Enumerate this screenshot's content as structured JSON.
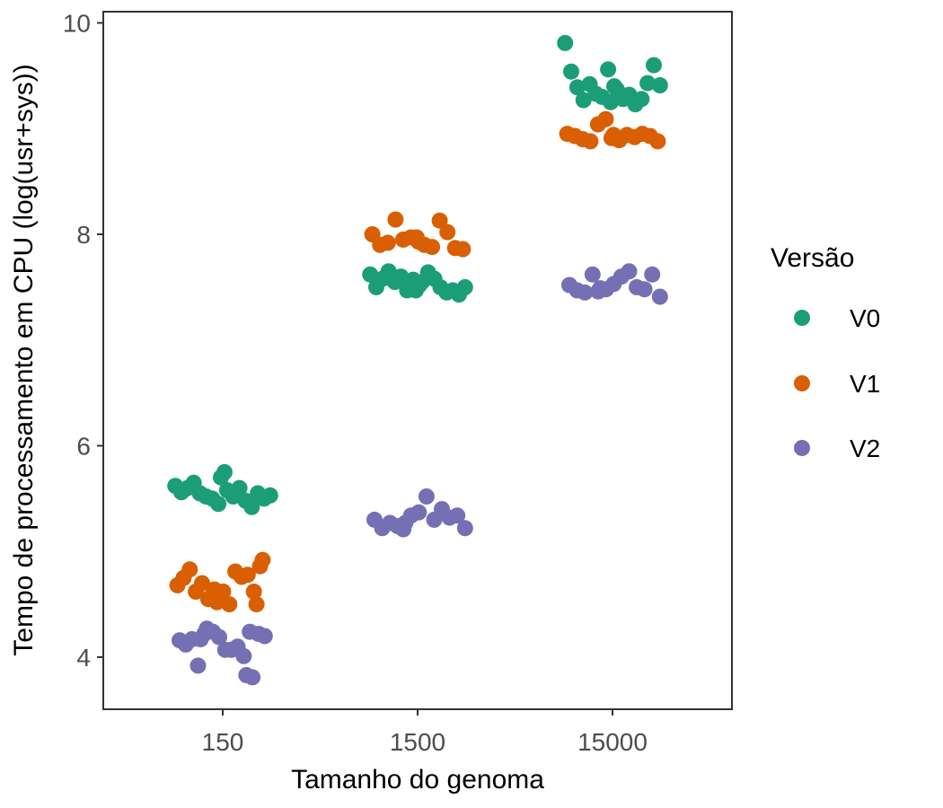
{
  "chart_data": {
    "type": "scatter",
    "xlabel": "Tamanho do genoma",
    "ylabel": "Tempo de processamento em CPU (log(usr+sys))",
    "categories": [
      "150",
      "1500",
      "15000"
    ],
    "ylim": [
      3.5,
      10.1
    ],
    "yticks": [
      4,
      6,
      8,
      10
    ],
    "grid": false,
    "legend": {
      "title": "Versão",
      "position": "right"
    },
    "series": [
      {
        "name": "V0",
        "color": "#1b9e77",
        "points": [
          {
            "x": "150",
            "y": 5.62
          },
          {
            "x": "150",
            "y": 5.56
          },
          {
            "x": "150",
            "y": 5.6
          },
          {
            "x": "150",
            "y": 5.65
          },
          {
            "x": "150",
            "y": 5.55
          },
          {
            "x": "150",
            "y": 5.52
          },
          {
            "x": "150",
            "y": 5.5
          },
          {
            "x": "150",
            "y": 5.45
          },
          {
            "x": "150",
            "y": 5.75
          },
          {
            "x": "150",
            "y": 5.7
          },
          {
            "x": "150",
            "y": 5.58
          },
          {
            "x": "150",
            "y": 5.52
          },
          {
            "x": "150",
            "y": 5.6
          },
          {
            "x": "150",
            "y": 5.48
          },
          {
            "x": "150",
            "y": 5.42
          },
          {
            "x": "150",
            "y": 5.55
          },
          {
            "x": "150",
            "y": 5.5
          },
          {
            "x": "150",
            "y": 5.53
          },
          {
            "x": "1500",
            "y": 7.62
          },
          {
            "x": "1500",
            "y": 7.5
          },
          {
            "x": "1500",
            "y": 7.58
          },
          {
            "x": "1500",
            "y": 7.65
          },
          {
            "x": "1500",
            "y": 7.55
          },
          {
            "x": "1500",
            "y": 7.6
          },
          {
            "x": "1500",
            "y": 7.47
          },
          {
            "x": "1500",
            "y": 7.57
          },
          {
            "x": "1500",
            "y": 7.52
          },
          {
            "x": "1500",
            "y": 7.47
          },
          {
            "x": "1500",
            "y": 7.55
          },
          {
            "x": "1500",
            "y": 7.64
          },
          {
            "x": "1500",
            "y": 7.58
          },
          {
            "x": "1500",
            "y": 7.5
          },
          {
            "x": "1500",
            "y": 7.45
          },
          {
            "x": "1500",
            "y": 7.47
          },
          {
            "x": "1500",
            "y": 7.43
          },
          {
            "x": "1500",
            "y": 7.5
          },
          {
            "x": "15000",
            "y": 9.81
          },
          {
            "x": "15000",
            "y": 9.54
          },
          {
            "x": "15000",
            "y": 9.39
          },
          {
            "x": "15000",
            "y": 9.27
          },
          {
            "x": "15000",
            "y": 9.42
          },
          {
            "x": "15000",
            "y": 9.33
          },
          {
            "x": "15000",
            "y": 9.3
          },
          {
            "x": "15000",
            "y": 9.56
          },
          {
            "x": "15000",
            "y": 9.4
          },
          {
            "x": "15000",
            "y": 9.25
          },
          {
            "x": "15000",
            "y": 9.37
          },
          {
            "x": "15000",
            "y": 9.28
          },
          {
            "x": "15000",
            "y": 9.32
          },
          {
            "x": "15000",
            "y": 9.23
          },
          {
            "x": "15000",
            "y": 9.28
          },
          {
            "x": "15000",
            "y": 9.43
          },
          {
            "x": "15000",
            "y": 9.6
          },
          {
            "x": "15000",
            "y": 9.41
          }
        ]
      },
      {
        "name": "V1",
        "color": "#d95f02",
        "points": [
          {
            "x": "150",
            "y": 4.68
          },
          {
            "x": "150",
            "y": 4.75
          },
          {
            "x": "150",
            "y": 4.83
          },
          {
            "x": "150",
            "y": 4.62
          },
          {
            "x": "150",
            "y": 4.7
          },
          {
            "x": "150",
            "y": 4.55
          },
          {
            "x": "150",
            "y": 4.64
          },
          {
            "x": "150",
            "y": 4.57
          },
          {
            "x": "150",
            "y": 4.52
          },
          {
            "x": "150",
            "y": 4.62
          },
          {
            "x": "150",
            "y": 4.5
          },
          {
            "x": "150",
            "y": 4.81
          },
          {
            "x": "150",
            "y": 4.76
          },
          {
            "x": "150",
            "y": 4.78
          },
          {
            "x": "150",
            "y": 4.62
          },
          {
            "x": "150",
            "y": 4.86
          },
          {
            "x": "150",
            "y": 4.5
          },
          {
            "x": "150",
            "y": 4.92
          },
          {
            "x": "1500",
            "y": 8.0
          },
          {
            "x": "1500",
            "y": 7.9
          },
          {
            "x": "1500",
            "y": 7.92
          },
          {
            "x": "1500",
            "y": 8.14
          },
          {
            "x": "1500",
            "y": 7.95
          },
          {
            "x": "1500",
            "y": 7.97
          },
          {
            "x": "1500",
            "y": 7.93
          },
          {
            "x": "1500",
            "y": 7.97
          },
          {
            "x": "1500",
            "y": 7.9
          },
          {
            "x": "1500",
            "y": 7.88
          },
          {
            "x": "1500",
            "y": 8.13
          },
          {
            "x": "1500",
            "y": 8.02
          },
          {
            "x": "1500",
            "y": 7.87
          },
          {
            "x": "1500",
            "y": 7.86
          },
          {
            "x": "15000",
            "y": 8.95
          },
          {
            "x": "15000",
            "y": 8.93
          },
          {
            "x": "15000",
            "y": 8.9
          },
          {
            "x": "15000",
            "y": 8.88
          },
          {
            "x": "15000",
            "y": 9.04
          },
          {
            "x": "15000",
            "y": 9.09
          },
          {
            "x": "15000",
            "y": 8.94
          },
          {
            "x": "15000",
            "y": 8.91
          },
          {
            "x": "15000",
            "y": 8.89
          },
          {
            "x": "15000",
            "y": 8.94
          },
          {
            "x": "15000",
            "y": 8.92
          },
          {
            "x": "15000",
            "y": 8.95
          },
          {
            "x": "15000",
            "y": 8.93
          },
          {
            "x": "15000",
            "y": 8.88
          }
        ]
      },
      {
        "name": "V2",
        "color": "#7570b3",
        "points": [
          {
            "x": "150",
            "y": 4.16
          },
          {
            "x": "150",
            "y": 4.12
          },
          {
            "x": "150",
            "y": 4.17
          },
          {
            "x": "150",
            "y": 3.92
          },
          {
            "x": "150",
            "y": 4.22
          },
          {
            "x": "150",
            "y": 4.17
          },
          {
            "x": "150",
            "y": 4.27
          },
          {
            "x": "150",
            "y": 4.24
          },
          {
            "x": "150",
            "y": 4.19
          },
          {
            "x": "150",
            "y": 4.07
          },
          {
            "x": "150",
            "y": 4.07
          },
          {
            "x": "150",
            "y": 4.1
          },
          {
            "x": "150",
            "y": 4.01
          },
          {
            "x": "150",
            "y": 4.24
          },
          {
            "x": "150",
            "y": 3.83
          },
          {
            "x": "150",
            "y": 3.81
          },
          {
            "x": "150",
            "y": 4.22
          },
          {
            "x": "150",
            "y": 4.2
          },
          {
            "x": "1500",
            "y": 5.3
          },
          {
            "x": "1500",
            "y": 5.22
          },
          {
            "x": "1500",
            "y": 5.27
          },
          {
            "x": "1500",
            "y": 5.24
          },
          {
            "x": "1500",
            "y": 5.27
          },
          {
            "x": "1500",
            "y": 5.21
          },
          {
            "x": "1500",
            "y": 5.34
          },
          {
            "x": "1500",
            "y": 5.37
          },
          {
            "x": "1500",
            "y": 5.52
          },
          {
            "x": "1500",
            "y": 5.3
          },
          {
            "x": "1500",
            "y": 5.4
          },
          {
            "x": "1500",
            "y": 5.32
          },
          {
            "x": "1500",
            "y": 5.34
          },
          {
            "x": "1500",
            "y": 5.22
          },
          {
            "x": "15000",
            "y": 7.52
          },
          {
            "x": "15000",
            "y": 7.47
          },
          {
            "x": "15000",
            "y": 7.45
          },
          {
            "x": "15000",
            "y": 7.62
          },
          {
            "x": "15000",
            "y": 7.49
          },
          {
            "x": "15000",
            "y": 7.46
          },
          {
            "x": "15000",
            "y": 7.48
          },
          {
            "x": "15000",
            "y": 7.53
          },
          {
            "x": "15000",
            "y": 7.6
          },
          {
            "x": "15000",
            "y": 7.65
          },
          {
            "x": "15000",
            "y": 7.5
          },
          {
            "x": "15000",
            "y": 7.48
          },
          {
            "x": "15000",
            "y": 7.62
          },
          {
            "x": "15000",
            "y": 7.41
          }
        ]
      }
    ]
  }
}
